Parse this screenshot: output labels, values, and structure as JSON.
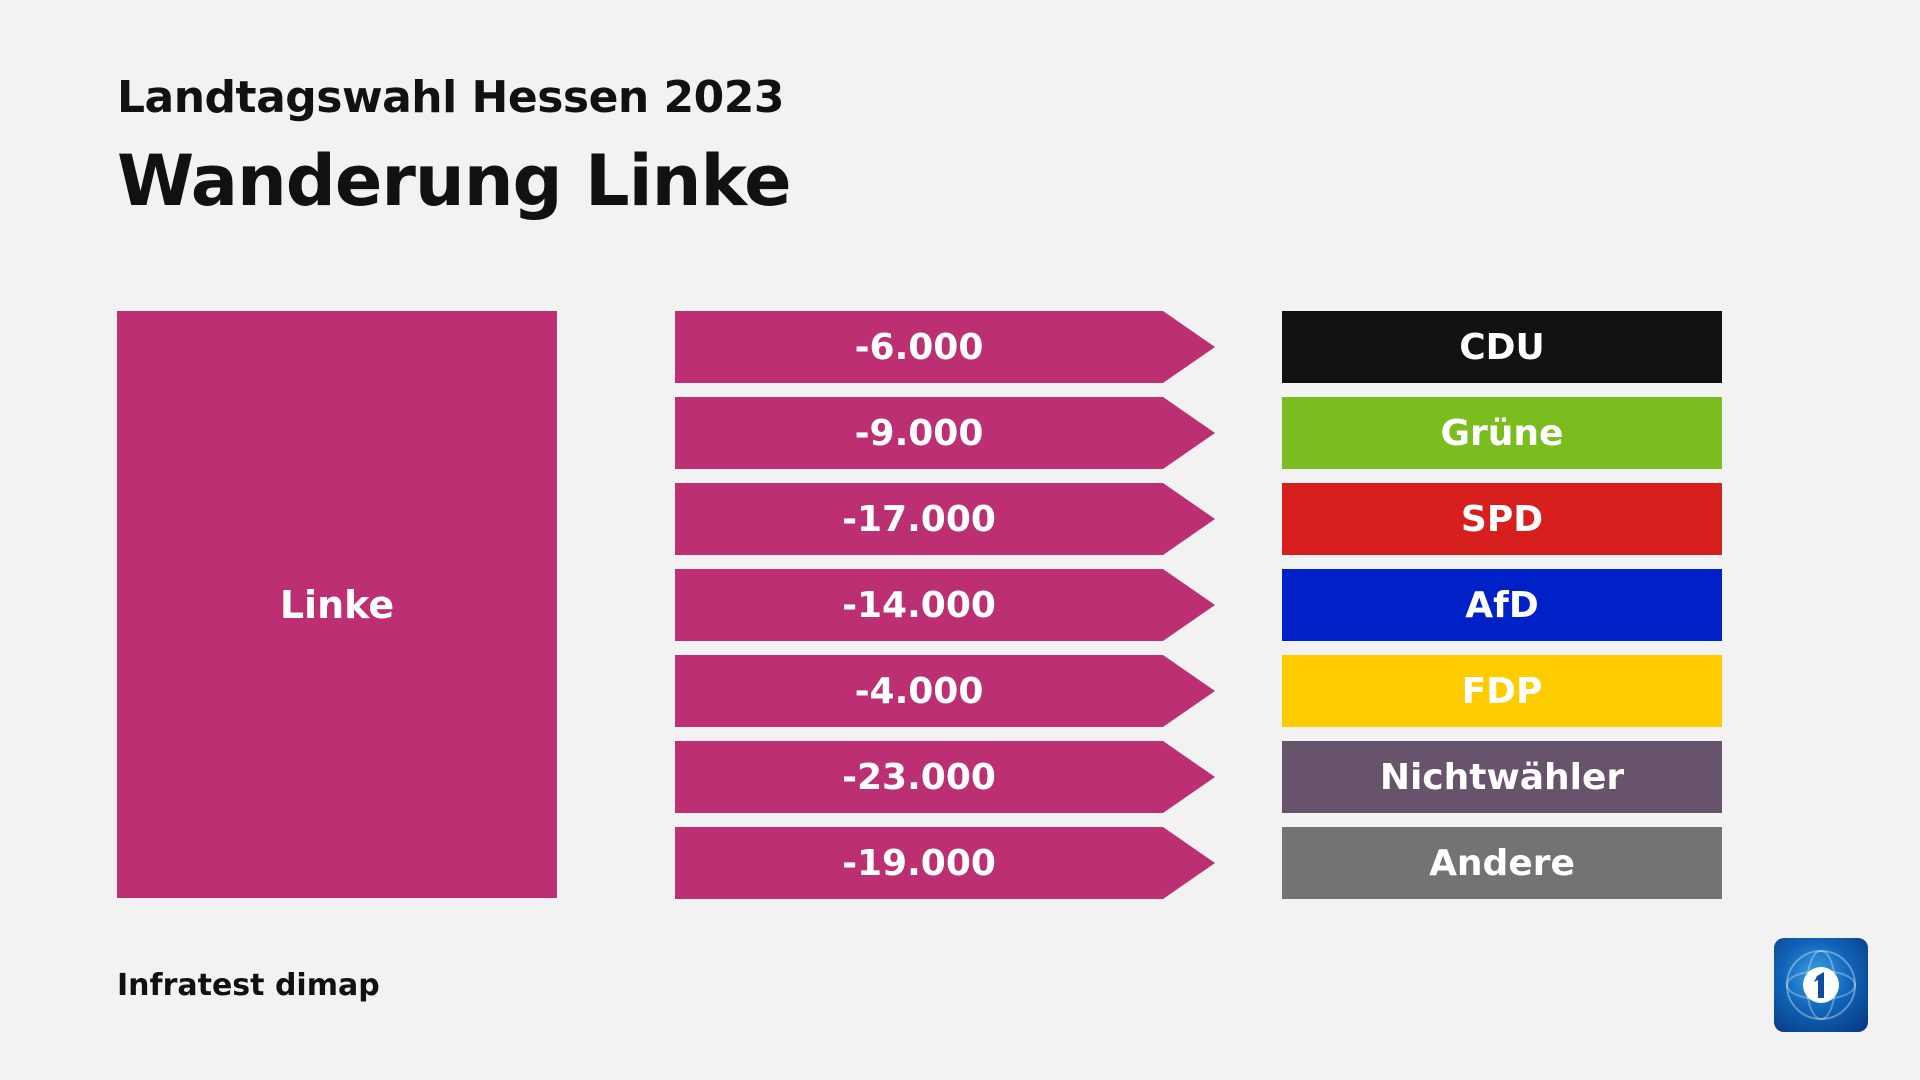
{
  "subtitle": "Landtagswahl Hessen 2023",
  "title": "Wanderung Linke",
  "footer": "Infratest dimap",
  "logo_icon": "ard-das-erste-logo-icon",
  "chart_data": {
    "type": "table",
    "source": {
      "label": "Linke",
      "color": "#bc3073"
    },
    "flows": [
      {
        "value_label": "-6.000",
        "value": -6000,
        "target": "CDU",
        "color": "#121212"
      },
      {
        "value_label": "-9.000",
        "value": -9000,
        "target": "Grüne",
        "color": "#7bbd1f"
      },
      {
        "value_label": "-17.000",
        "value": -17000,
        "target": "SPD",
        "color": "#d71f1d"
      },
      {
        "value_label": "-14.000",
        "value": -14000,
        "target": "AfD",
        "color": "#0021c8"
      },
      {
        "value_label": "-4.000",
        "value": -4000,
        "target": "FDP",
        "color": "#ffcc00"
      },
      {
        "value_label": "-23.000",
        "value": -23000,
        "target": "Nichtwähler",
        "color": "#68536d"
      },
      {
        "value_label": "-19.000",
        "value": -19000,
        "target": "Andere",
        "color": "#737375"
      }
    ]
  }
}
